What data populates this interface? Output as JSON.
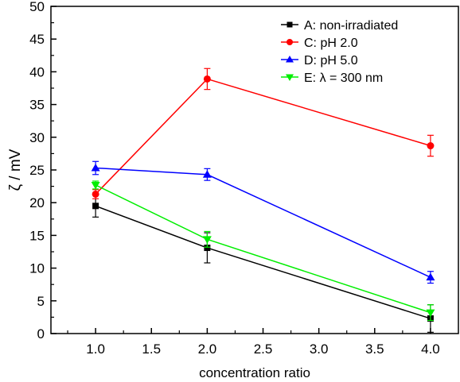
{
  "chart_data": {
    "type": "line",
    "xlabel": "concentration ratio",
    "ylabel": "ζ / mV",
    "xlim": [
      0.6,
      4.25
    ],
    "ylim": [
      0,
      50
    ],
    "xticks": [
      1.0,
      1.5,
      2.0,
      2.5,
      3.0,
      3.5,
      4.0
    ],
    "xtick_labels": [
      "1.0",
      "1.5",
      "2.0",
      "2.5",
      "3.0",
      "3.5",
      "4.0"
    ],
    "yticks": [
      0,
      5,
      10,
      15,
      20,
      25,
      30,
      35,
      40,
      45,
      50
    ],
    "ytick_labels": [
      "0",
      "5",
      "10",
      "15",
      "20",
      "25",
      "30",
      "35",
      "40",
      "45",
      "50"
    ],
    "grid": false,
    "legend_position": "top-right",
    "series": [
      {
        "name": "A: non-irradiated",
        "marker": "square",
        "color": "#000000",
        "x": [
          1.0,
          2.0,
          4.0
        ],
        "y": [
          19.5,
          13.1,
          2.3
        ],
        "yerr": [
          1.7,
          2.3,
          2.1
        ]
      },
      {
        "name": "C: pH 2.0",
        "marker": "circle",
        "color": "#ff0000",
        "x": [
          1.0,
          2.0,
          4.0
        ],
        "y": [
          21.3,
          38.9,
          28.7
        ],
        "yerr": [
          0.7,
          1.6,
          1.6
        ]
      },
      {
        "name": "D: pH 5.0",
        "marker": "triangle-up",
        "color": "#0000ff",
        "x": [
          1.0,
          2.0,
          4.0
        ],
        "y": [
          25.3,
          24.3,
          8.6
        ],
        "yerr": [
          1.0,
          0.9,
          0.9
        ]
      },
      {
        "name": "E: λ = 300 nm",
        "marker": "triangle-down",
        "color": "#00ee00",
        "x": [
          1.0,
          2.0,
          4.0
        ],
        "y": [
          22.7,
          14.4,
          3.2
        ],
        "yerr": [
          0.6,
          1.2,
          1.2
        ]
      }
    ]
  }
}
